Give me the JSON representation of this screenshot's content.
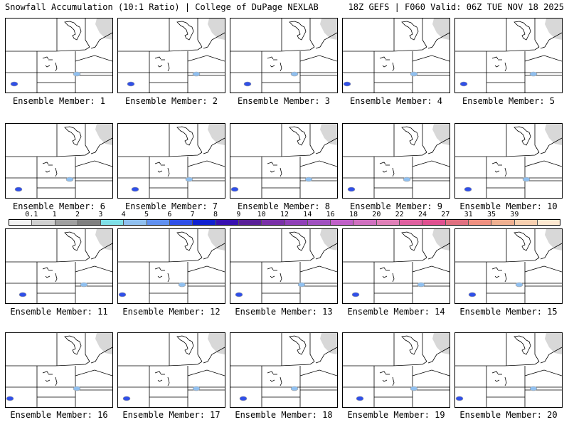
{
  "header": {
    "title_left": "Snowfall Accumulation (10:1 Ratio) | College of DuPage NEXLAB",
    "title_right": "18Z GEFS | F060 Valid: 06Z TUE NOV 18 2025"
  },
  "legend": {
    "labels": [
      "0.1",
      "1",
      "2",
      "3",
      "4",
      "5",
      "6",
      "7",
      "8",
      "9",
      "10",
      "12",
      "14",
      "16",
      "18",
      "20",
      "22",
      "24",
      "27",
      "31",
      "35",
      "39"
    ],
    "colors": [
      "#f2f2f2",
      "#d0d0d0",
      "#a0a0a0",
      "#808080",
      "#7fe0e8",
      "#90c0f0",
      "#6090f0",
      "#3050e8",
      "#1020d0",
      "#3810b0",
      "#5a2098",
      "#7a30a8",
      "#9040b8",
      "#a050c0",
      "#c060c8",
      "#d070c0",
      "#e080b8",
      "#e060a0",
      "#e05090",
      "#e07080",
      "#f09080",
      "#f0b090",
      "#f8d0b0",
      "#fde8d0"
    ]
  },
  "members": [
    {
      "label": "Ensemble Member: 1"
    },
    {
      "label": "Ensemble Member: 2"
    },
    {
      "label": "Ensemble Member: 3"
    },
    {
      "label": "Ensemble Member: 4"
    },
    {
      "label": "Ensemble Member: 5"
    },
    {
      "label": "Ensemble Member: 6"
    },
    {
      "label": "Ensemble Member: 7"
    },
    {
      "label": "Ensemble Member: 8"
    },
    {
      "label": "Ensemble Member: 9"
    },
    {
      "label": "Ensemble Member: 10"
    },
    {
      "label": "Ensemble Member: 11"
    },
    {
      "label": "Ensemble Member: 12"
    },
    {
      "label": "Ensemble Member: 13"
    },
    {
      "label": "Ensemble Member: 14"
    },
    {
      "label": "Ensemble Member: 15"
    },
    {
      "label": "Ensemble Member: 16"
    },
    {
      "label": "Ensemble Member: 17"
    },
    {
      "label": "Ensemble Member: 18"
    },
    {
      "label": "Ensemble Member: 19"
    },
    {
      "label": "Ensemble Member: 20"
    }
  ]
}
